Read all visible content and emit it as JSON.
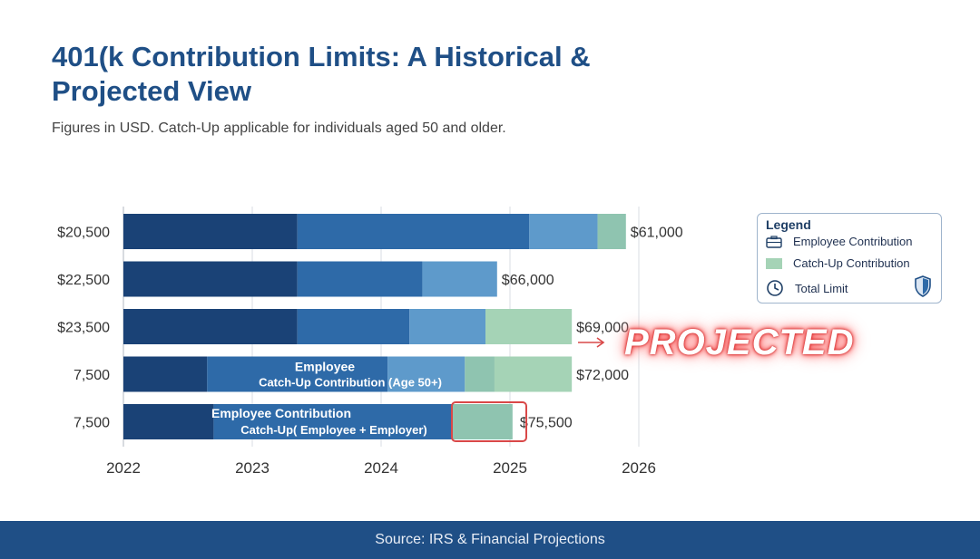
{
  "page": {
    "title": "401(k Contribution Limits: A Historical & Projected View",
    "subtitle": "Figures in USD. Catch-Up applicable for individuals aged 50 and older.",
    "projected_label": "PROJECTED",
    "footer": "Source: IRS & Financial Projections"
  },
  "legend": {
    "title": "Legend",
    "items": [
      {
        "label": "Employee Contribution",
        "icon": "briefcase-icon"
      },
      {
        "label": "Catch-Up Contribution",
        "icon": "green-swatch"
      },
      {
        "label": "Total Limit",
        "icon": "clock-icon"
      }
    ],
    "badge_icon": "shield-icon"
  },
  "chart_data": {
    "type": "bar",
    "orientation": "horizontal",
    "stacked": true,
    "xlabel": "",
    "ylabel": "",
    "xlim": [
      2022,
      2026
    ],
    "x_ticks": [
      "2022",
      "2023",
      "2024",
      "2025",
      "2026"
    ],
    "grid": "vertical lines",
    "legend_placement": "right",
    "colors": [
      "#1a4276",
      "#2e6aa8",
      "#5e9acb",
      "#a5d3b6"
    ],
    "rows": [
      {
        "label": "$20,500",
        "total_label": "$61,000",
        "segments": [
          {
            "start": 2022,
            "end": 2023.35,
            "color": "#1a4276"
          },
          {
            "start": 2023.35,
            "end": 2025.15,
            "color": "#2e6aa8"
          },
          {
            "start": 2025.15,
            "end": 2025.68,
            "color": "#5e9acb"
          },
          {
            "start": 2025.68,
            "end": 2025.9,
            "color": "#8fc4b0"
          }
        ]
      },
      {
        "label": "$22,500",
        "total_label": "$66,000",
        "segments": [
          {
            "start": 2022,
            "end": 2023.35,
            "color": "#1a4276"
          },
          {
            "start": 2023.35,
            "end": 2024.32,
            "color": "#2e6aa8"
          },
          {
            "start": 2024.32,
            "end": 2024.9,
            "color": "#5e9acb"
          }
        ]
      },
      {
        "label": "$23,500",
        "total_label": "$69,000",
        "segments": [
          {
            "start": 2022,
            "end": 2023.35,
            "color": "#1a4276"
          },
          {
            "start": 2023.35,
            "end": 2024.22,
            "color": "#2e6aa8"
          },
          {
            "start": 2024.22,
            "end": 2024.81,
            "color": "#5e9acb"
          },
          {
            "start": 2024.81,
            "end": 2025.48,
            "color": "#a5d3b6"
          }
        ]
      },
      {
        "label": "7,500",
        "total_label": "$72,000",
        "inner_labels": [
          "Employee",
          "Catch-Up Contribution (Age 50+)"
        ],
        "segments": [
          {
            "start": 2022,
            "end": 2022.65,
            "color": "#1a4276"
          },
          {
            "start": 2022.65,
            "end": 2024.05,
            "color": "#2e6aa8"
          },
          {
            "start": 2024.05,
            "end": 2024.65,
            "color": "#5e9acb"
          },
          {
            "start": 2024.65,
            "end": 2024.88,
            "color": "#8fc4b0"
          },
          {
            "start": 2024.88,
            "end": 2025.48,
            "color": "#a5d3b6"
          }
        ]
      },
      {
        "label": "7,500",
        "total_label": "$75,500",
        "inner_labels": [
          "Employee Contribution",
          "Catch-Up( Employee + Employer)"
        ],
        "highlighted": true,
        "segments": [
          {
            "start": 2022,
            "end": 2022.7,
            "color": "#1a4276"
          },
          {
            "start": 2022.7,
            "end": 2024.55,
            "color": "#2e6aa8"
          },
          {
            "start": 2024.55,
            "end": 2025.02,
            "color": "#8fc4b0"
          }
        ]
      }
    ]
  }
}
